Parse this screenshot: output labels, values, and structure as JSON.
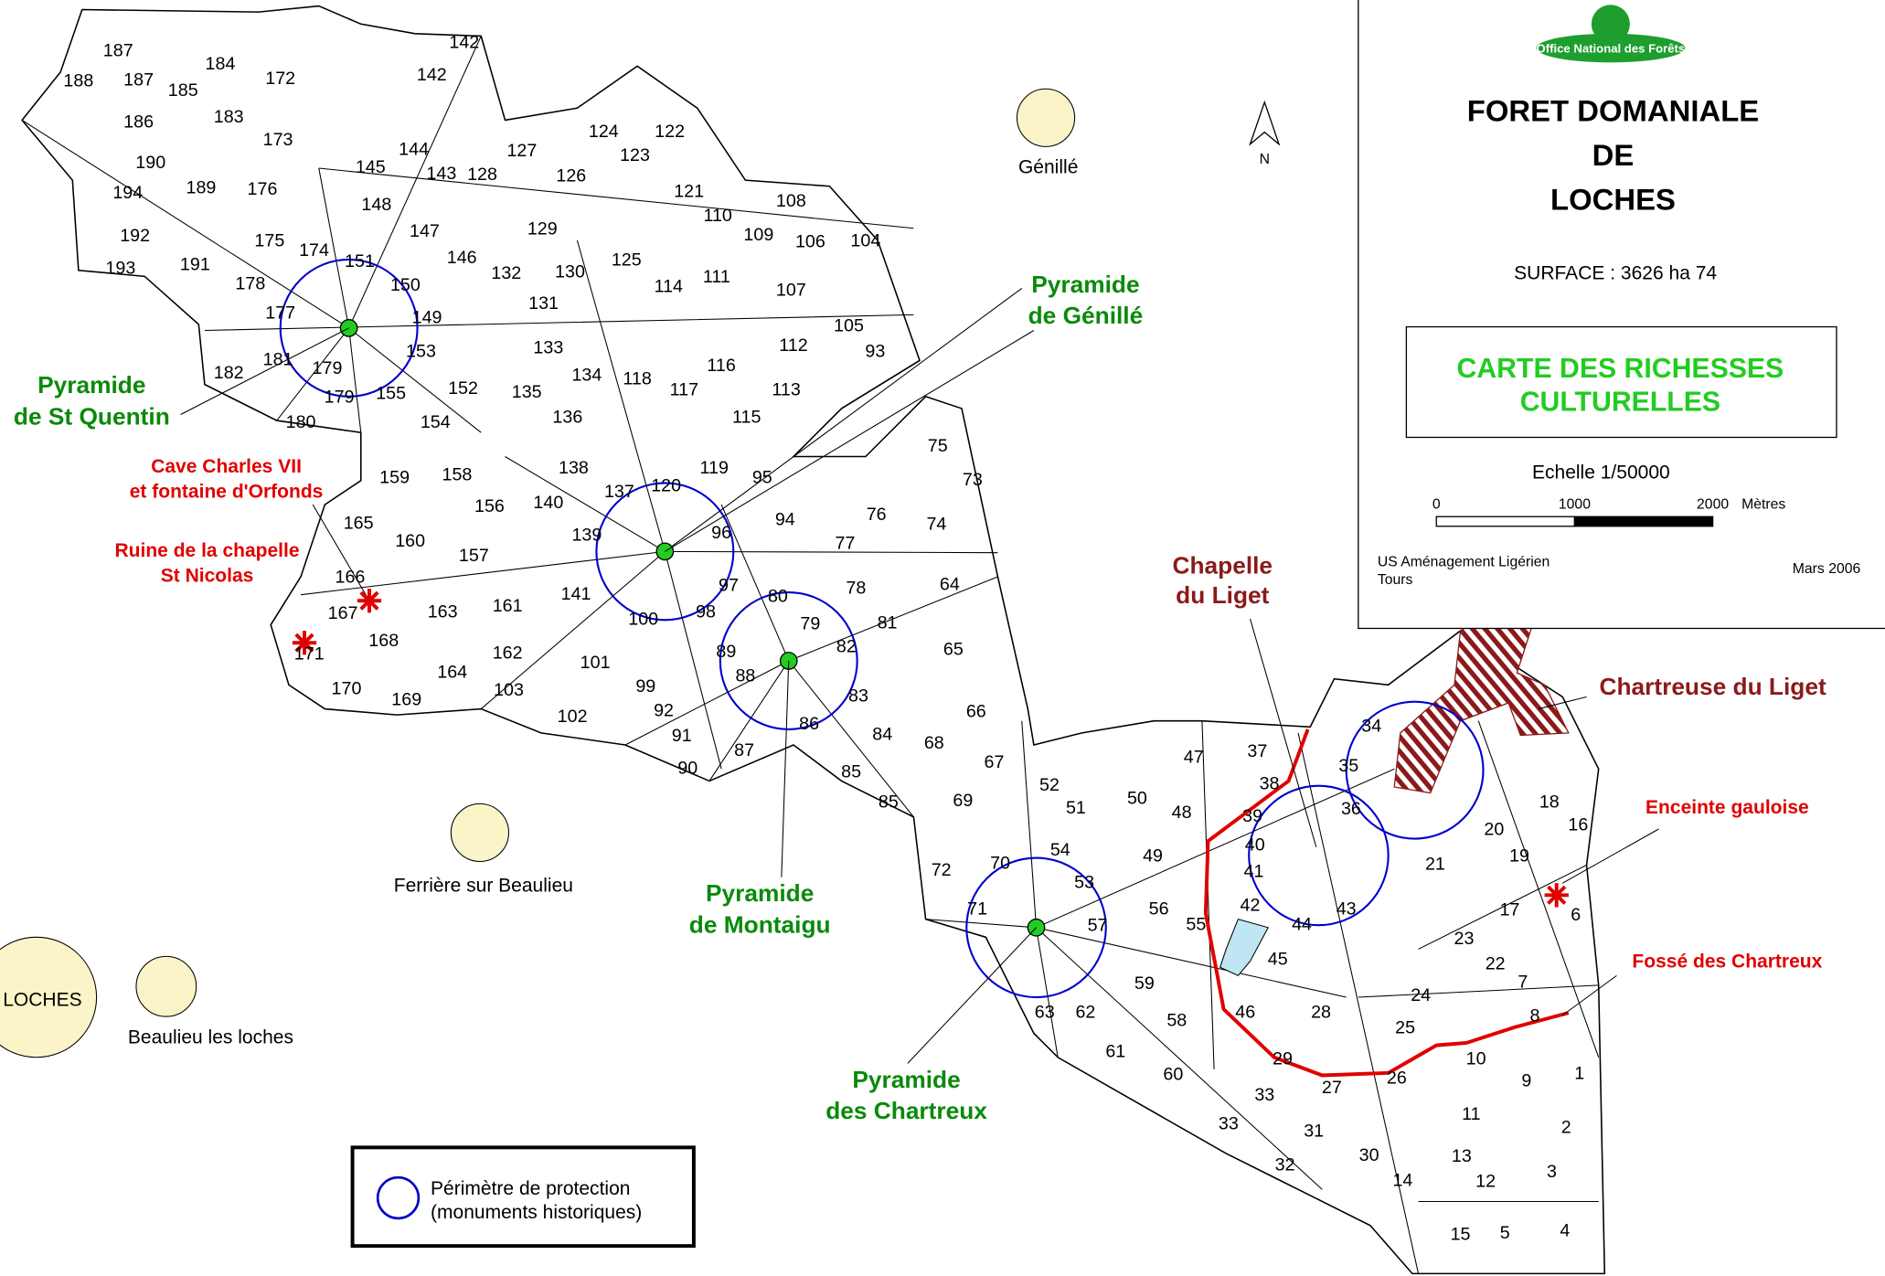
{
  "header": {
    "logo": "Office National des Forêts",
    "title_lines": [
      "FORET DOMANIALE",
      "DE",
      "LOCHES"
    ],
    "surface": "SURFACE : 3626 ha 74",
    "subtitle_lines": [
      "CARTE DES RICHESSES",
      "CULTURELLES"
    ],
    "scale": "Echelle 1/50000",
    "scale_ticks": [
      "0",
      "1000",
      "2000"
    ],
    "scale_unit": "Mètres",
    "author_lines": [
      "US Aménagement Ligérien",
      "Tours"
    ],
    "date": "Mars 2006"
  },
  "north": "N",
  "places": [
    "Génillé",
    "Ferrière sur Beaulieu",
    "LOCHES",
    "Beaulieu les loches"
  ],
  "pyramids": [
    [
      "Pyramide",
      "de St Quentin"
    ],
    [
      "Pyramide",
      "de Génillé"
    ],
    [
      "Pyramide",
      "de Montaigu"
    ],
    [
      "Pyramide",
      "des Chartreux"
    ]
  ],
  "sites": [
    [
      "Cave Charles VII",
      "et fontaine d'Orfonds"
    ],
    [
      "Ruine de la chapelle",
      "St Nicolas"
    ],
    [
      "Chapelle",
      "du Liget"
    ],
    [
      "Chartreuse du Liget"
    ],
    [
      "Enceinte gauloise"
    ],
    [
      "Fossé des Chartreux"
    ]
  ],
  "legend": [
    "Périmètre de protection",
    "(monuments historiques)"
  ],
  "parcels": [
    "187",
    "188",
    "187",
    "185",
    "184",
    "172",
    "186",
    "183",
    "173",
    "190",
    "189",
    "176",
    "194",
    "192",
    "193",
    "191",
    "175",
    "174",
    "178",
    "177",
    "182",
    "181",
    "179",
    "179",
    "180",
    "142",
    "142",
    "144",
    "145",
    "143",
    "128",
    "127",
    "148",
    "147",
    "146",
    "151",
    "150",
    "149",
    "153",
    "155",
    "152",
    "154",
    "124",
    "122",
    "123",
    "126",
    "121",
    "110",
    "129",
    "132",
    "130",
    "125",
    "114",
    "111",
    "109",
    "108",
    "106",
    "104",
    "107",
    "131",
    "133",
    "134",
    "135",
    "118",
    "117",
    "116",
    "112",
    "105",
    "93",
    "113",
    "115",
    "136",
    "159",
    "158",
    "156",
    "140",
    "138",
    "137",
    "120",
    "119",
    "95",
    "94",
    "96",
    "165",
    "160",
    "157",
    "139",
    "166",
    "167",
    "163",
    "161",
    "141",
    "100",
    "98",
    "97",
    "80",
    "79",
    "78",
    "77",
    "76",
    "74",
    "73",
    "75",
    "64",
    "81",
    "82",
    "89",
    "88",
    "168",
    "171",
    "162",
    "101",
    "99",
    "65",
    "170",
    "169",
    "164",
    "103",
    "102",
    "92",
    "83",
    "91",
    "87",
    "86",
    "84",
    "66",
    "68",
    "67",
    "90",
    "85",
    "85",
    "69",
    "52",
    "51",
    "50",
    "48",
    "47",
    "37",
    "38",
    "39",
    "40",
    "41",
    "35",
    "34",
    "36",
    "49",
    "54",
    "70",
    "72",
    "71",
    "53",
    "57",
    "56",
    "55",
    "42",
    "44",
    "43",
    "45",
    "59",
    "63",
    "62",
    "58",
    "46",
    "28",
    "61",
    "60",
    "29",
    "27",
    "26",
    "33",
    "33",
    "31",
    "32",
    "30",
    "14",
    "24",
    "25",
    "10",
    "9",
    "1",
    "11",
    "2",
    "13",
    "12",
    "3",
    "15",
    "5",
    "4",
    "8",
    "7",
    "22",
    "23",
    "17",
    "6",
    "19",
    "20",
    "21",
    "18",
    "16"
  ]
}
